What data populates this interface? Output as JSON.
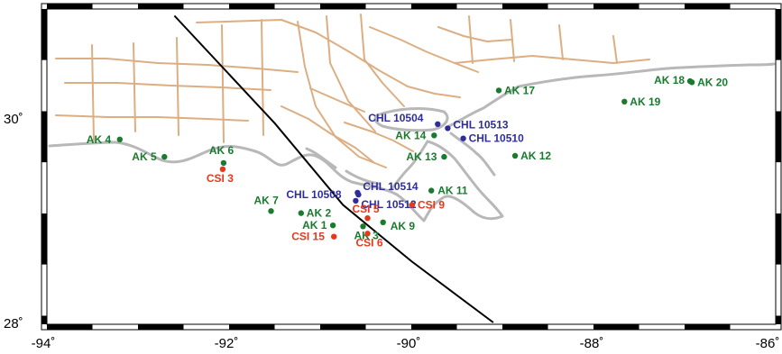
{
  "map": {
    "lon_range": [
      -94,
      -86
    ],
    "lat_range": [
      28,
      31
    ],
    "lon_ticks": [
      "-94˚",
      "-92˚",
      "-90˚",
      "-88˚",
      "-86˚"
    ],
    "lat_ticks": [
      "30˚",
      "28˚"
    ],
    "colors": {
      "AK": "#1a7a2e",
      "CHL": "#2e2e9a",
      "CSI": "#e23a1c",
      "coast": "#b8b8b8",
      "roads": "#dcae82",
      "track": "#000000"
    },
    "track": [
      [
        -92.6,
        31.0
      ],
      [
        -91.5,
        29.95
      ],
      [
        -90.75,
        29.15
      ],
      [
        -90.0,
        28.6
      ],
      [
        -89.1,
        28.0
      ]
    ],
    "stations": [
      {
        "label": "AK 1",
        "network": "AK",
        "lon": -90.86,
        "lat": 28.95
      },
      {
        "label": "AK 2",
        "network": "AK",
        "lon": -91.21,
        "lat": 29.07
      },
      {
        "label": "AK 3",
        "network": "AK",
        "lon": -90.53,
        "lat": 28.94
      },
      {
        "label": "AK 4",
        "network": "AK",
        "lon": -93.2,
        "lat": 29.79
      },
      {
        "label": "AK 5",
        "network": "AK",
        "lon": -92.71,
        "lat": 29.62
      },
      {
        "label": "AK 6",
        "network": "AK",
        "lon": -92.06,
        "lat": 29.56
      },
      {
        "label": "AK 7",
        "network": "AK",
        "lon": -91.54,
        "lat": 29.09
      },
      {
        "label": "AK 9",
        "network": "AK",
        "lon": -90.31,
        "lat": 28.98
      },
      {
        "label": "AK 11",
        "network": "AK",
        "lon": -89.78,
        "lat": 29.29
      },
      {
        "label": "AK 12",
        "network": "AK",
        "lon": -88.86,
        "lat": 29.63
      },
      {
        "label": "AK 13",
        "network": "AK",
        "lon": -89.64,
        "lat": 29.62
      },
      {
        "label": "AK 14",
        "network": "AK",
        "lon": -89.75,
        "lat": 29.83
      },
      {
        "label": "AK 17",
        "network": "AK",
        "lon": -89.04,
        "lat": 30.27
      },
      {
        "label": "AK 18",
        "network": "AK",
        "lon": -86.94,
        "lat": 30.36
      },
      {
        "label": "AK 19",
        "network": "AK",
        "lon": -87.66,
        "lat": 30.16
      },
      {
        "label": "AK 20",
        "network": "AK",
        "lon": -86.92,
        "lat": 30.35
      },
      {
        "label": "CHL 10504",
        "network": "CHL",
        "lon": -89.71,
        "lat": 29.94
      },
      {
        "label": "CHL 10508",
        "network": "CHL",
        "lon": -90.58,
        "lat": 29.25
      },
      {
        "label": "CHL 10510",
        "network": "CHL",
        "lon": -89.43,
        "lat": 29.8
      },
      {
        "label": "CHL 10512",
        "network": "CHL",
        "lon": -90.61,
        "lat": 29.19
      },
      {
        "label": "CHL 10513",
        "network": "CHL",
        "lon": -89.6,
        "lat": 29.9
      },
      {
        "label": "CHL 10514",
        "network": "CHL",
        "lon": -90.59,
        "lat": 29.27
      },
      {
        "label": "CSI 3",
        "network": "CSI",
        "lon": -92.07,
        "lat": 29.5
      },
      {
        "label": "CSI 5",
        "network": "CSI",
        "lon": -90.48,
        "lat": 29.02
      },
      {
        "label": "CSI 6",
        "network": "CSI",
        "lon": -90.48,
        "lat": 28.87
      },
      {
        "label": "CSI 9",
        "network": "CSI",
        "lon": -89.99,
        "lat": 29.15
      },
      {
        "label": "CSI 15",
        "network": "CSI",
        "lon": -90.85,
        "lat": 28.84
      }
    ]
  }
}
